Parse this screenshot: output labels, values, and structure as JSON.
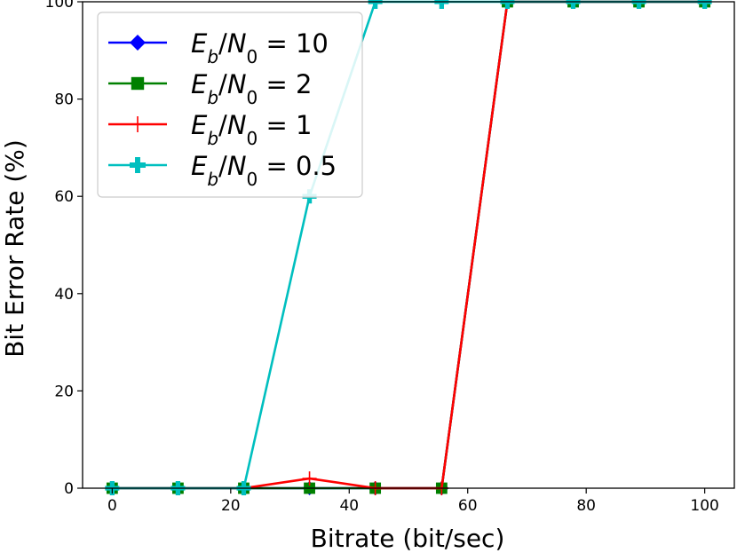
{
  "chart_data": {
    "type": "line",
    "title": "",
    "xlabel": "Bitrate (bit/sec)",
    "ylabel": "Bit Error Rate (%)",
    "xlim": [
      -5,
      105
    ],
    "ylim": [
      0,
      100
    ],
    "xticks": [
      0,
      20,
      40,
      60,
      80,
      100
    ],
    "yticks": [
      0,
      20,
      40,
      60,
      80,
      100
    ],
    "x": [
      0,
      11.1,
      22.2,
      33.3,
      44.4,
      55.6,
      66.7,
      77.8,
      88.9,
      100
    ],
    "grid": false,
    "legend_position": "top-left",
    "series": [
      {
        "name": "E_b/N_0 = 10",
        "legend": {
          "E": "E",
          "sub1": "b",
          "N": "N",
          "sub2": "0",
          "eq": "= 10"
        },
        "color": "#0000ff",
        "marker": "diamond",
        "values": [
          0,
          0,
          0,
          0,
          0,
          0,
          100,
          100,
          100,
          100
        ]
      },
      {
        "name": "E_b/N_0 = 2",
        "legend": {
          "E": "E",
          "sub1": "b",
          "N": "N",
          "sub2": "0",
          "eq": "= 2"
        },
        "color": "#008000",
        "marker": "square",
        "values": [
          0,
          0,
          0,
          0,
          0,
          0,
          100,
          100,
          100,
          100
        ]
      },
      {
        "name": "E_b/N_0 = 1",
        "legend": {
          "E": "E",
          "sub1": "b",
          "N": "N",
          "sub2": "0",
          "eq": "= 1"
        },
        "color": "#ff0000",
        "marker": "plus-thin",
        "values": [
          0,
          0,
          0,
          2,
          0,
          0,
          100,
          100,
          100,
          100
        ]
      },
      {
        "name": "E_b/N_0 = 0.5",
        "legend": {
          "E": "E",
          "sub1": "b",
          "N": "N",
          "sub2": "0",
          "eq": "= 0.5"
        },
        "color": "#00bfbf",
        "marker": "plus-filled",
        "values": [
          0,
          0,
          0,
          60,
          100,
          100,
          100,
          100,
          100,
          100
        ]
      }
    ]
  }
}
